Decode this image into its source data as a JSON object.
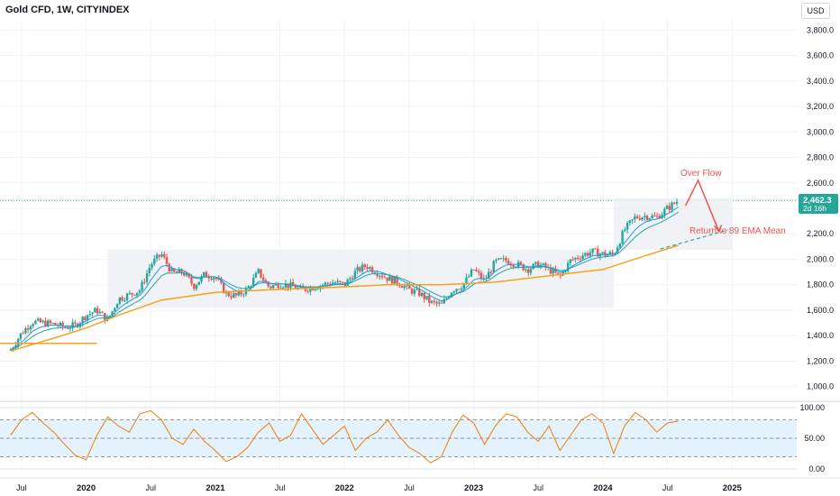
{
  "header": {
    "title": "Gold CFD, 1W, CITYINDEX",
    "currency": "USD"
  },
  "price_label": {
    "value": "2,462.3",
    "countdown": "2d 16h"
  },
  "annotations": {
    "over_flow": "Over Flow",
    "return": "Return to 89 EMA Mean"
  },
  "colors": {
    "up": "#26a69a",
    "down": "#ef5350",
    "ema_fast": "#2196f3",
    "ema_mid": "#26a69a",
    "ema_slow": "#f7a21b",
    "osc": "#f57c00",
    "osc_band": "#e3f2fd",
    "box": "#eceff3"
  },
  "chart_data": [
    {
      "type": "candlestick",
      "title": "Gold CFD, 1W, CITYINDEX",
      "y_axis": {
        "ticks": [
          "3,800.0",
          "3,600.0",
          "3,400.0",
          "3,200.0",
          "3,000.0",
          "2,800.0",
          "2,600.0",
          "2,400.0",
          "2,200.0",
          "2,000.0",
          "1,800.0",
          "1,600.0",
          "1,400.0",
          "1,200.0",
          "1,000.0"
        ],
        "ylim": [
          920,
          3880
        ],
        "unit": "USD"
      },
      "x_axis": {
        "ticks": [
          "Jul",
          "2020",
          "Jul",
          "2021",
          "Jul",
          "2022",
          "Jul",
          "2023",
          "Jul",
          "2024",
          "Jul",
          "2025"
        ],
        "range": [
          "2019-05",
          "2025-07"
        ]
      },
      "close_path": [
        [
          "2019-06",
          1290
        ],
        [
          "2019-07",
          1420
        ],
        [
          "2019-08",
          1510
        ],
        [
          "2019-09",
          1500
        ],
        [
          "2019-10",
          1490
        ],
        [
          "2019-11",
          1465
        ],
        [
          "2019-12",
          1480
        ],
        [
          "2020-01",
          1560
        ],
        [
          "2020-02",
          1600
        ],
        [
          "2020-03",
          1520
        ],
        [
          "2020-04",
          1690
        ],
        [
          "2020-05",
          1720
        ],
        [
          "2020-06",
          1760
        ],
        [
          "2020-07",
          1960
        ],
        [
          "2020-08",
          2040
        ],
        [
          "2020-09",
          1890
        ],
        [
          "2020-10",
          1900
        ],
        [
          "2020-11",
          1790
        ],
        [
          "2020-12",
          1880
        ],
        [
          "2021-01",
          1860
        ],
        [
          "2021-02",
          1730
        ],
        [
          "2021-03",
          1710
        ],
        [
          "2021-04",
          1770
        ],
        [
          "2021-05",
          1900
        ],
        [
          "2021-06",
          1780
        ],
        [
          "2021-07",
          1810
        ],
        [
          "2021-08",
          1790
        ],
        [
          "2021-09",
          1760
        ],
        [
          "2021-10",
          1780
        ],
        [
          "2021-11",
          1800
        ],
        [
          "2021-12",
          1820
        ],
        [
          "2022-01",
          1800
        ],
        [
          "2022-02",
          1900
        ],
        [
          "2022-03",
          1950
        ],
        [
          "2022-04",
          1900
        ],
        [
          "2022-05",
          1850
        ],
        [
          "2022-06",
          1820
        ],
        [
          "2022-07",
          1760
        ],
        [
          "2022-08",
          1730
        ],
        [
          "2022-09",
          1660
        ],
        [
          "2022-10",
          1640
        ],
        [
          "2022-11",
          1760
        ],
        [
          "2022-12",
          1800
        ],
        [
          "2023-01",
          1920
        ],
        [
          "2023-02",
          1830
        ],
        [
          "2023-03",
          1980
        ],
        [
          "2023-04",
          1990
        ],
        [
          "2023-05",
          1960
        ],
        [
          "2023-06",
          1920
        ],
        [
          "2023-07",
          1960
        ],
        [
          "2023-08",
          1920
        ],
        [
          "2023-09",
          1860
        ],
        [
          "2023-10",
          1990
        ],
        [
          "2023-11",
          2030
        ],
        [
          "2023-12",
          2060
        ],
        [
          "2024-01",
          2040
        ],
        [
          "2024-02",
          2040
        ],
        [
          "2024-03",
          2230
        ],
        [
          "2024-04",
          2330
        ],
        [
          "2024-05",
          2340
        ],
        [
          "2024-06",
          2330
        ],
        [
          "2024-07",
          2400
        ],
        [
          "2024-08",
          2462
        ]
      ],
      "ema_89": [
        [
          "2019-06",
          1280
        ],
        [
          "2019-10",
          1380
        ],
        [
          "2020-01",
          1460
        ],
        [
          "2020-04",
          1560
        ],
        [
          "2020-08",
          1680
        ],
        [
          "2021-01",
          1740
        ],
        [
          "2021-06",
          1760
        ],
        [
          "2021-12",
          1780
        ],
        [
          "2022-05",
          1800
        ],
        [
          "2022-10",
          1800
        ],
        [
          "2023-03",
          1820
        ],
        [
          "2023-08",
          1870
        ],
        [
          "2024-01",
          1920
        ],
        [
          "2024-05",
          2030
        ],
        [
          "2024-08",
          2110
        ]
      ],
      "projection": {
        "over_flow_peak": 2620,
        "ema_target": 2220
      },
      "consolidation_box": {
        "from": "2020-03",
        "to": "2024-02",
        "low": 1620,
        "high": 2075
      },
      "recent_box": {
        "from": "2024-02",
        "to": "2025-01",
        "low": 2075,
        "high": 2480
      }
    },
    {
      "type": "line",
      "y_axis": {
        "ticks": [
          "100.00",
          "50.00",
          "0.00"
        ],
        "ylim": [
          0,
          100
        ]
      },
      "band": [
        20,
        80
      ],
      "values": [
        55,
        80,
        92,
        75,
        60,
        40,
        22,
        15,
        55,
        85,
        70,
        60,
        90,
        95,
        80,
        50,
        40,
        65,
        45,
        30,
        12,
        20,
        35,
        60,
        75,
        45,
        55,
        90,
        65,
        40,
        55,
        70,
        30,
        50,
        60,
        80,
        55,
        35,
        25,
        10,
        20,
        60,
        88,
        75,
        40,
        70,
        90,
        85,
        60,
        45,
        70,
        30,
        55,
        80,
        90,
        75,
        25,
        70,
        92,
        80,
        60,
        75,
        78
      ]
    }
  ]
}
